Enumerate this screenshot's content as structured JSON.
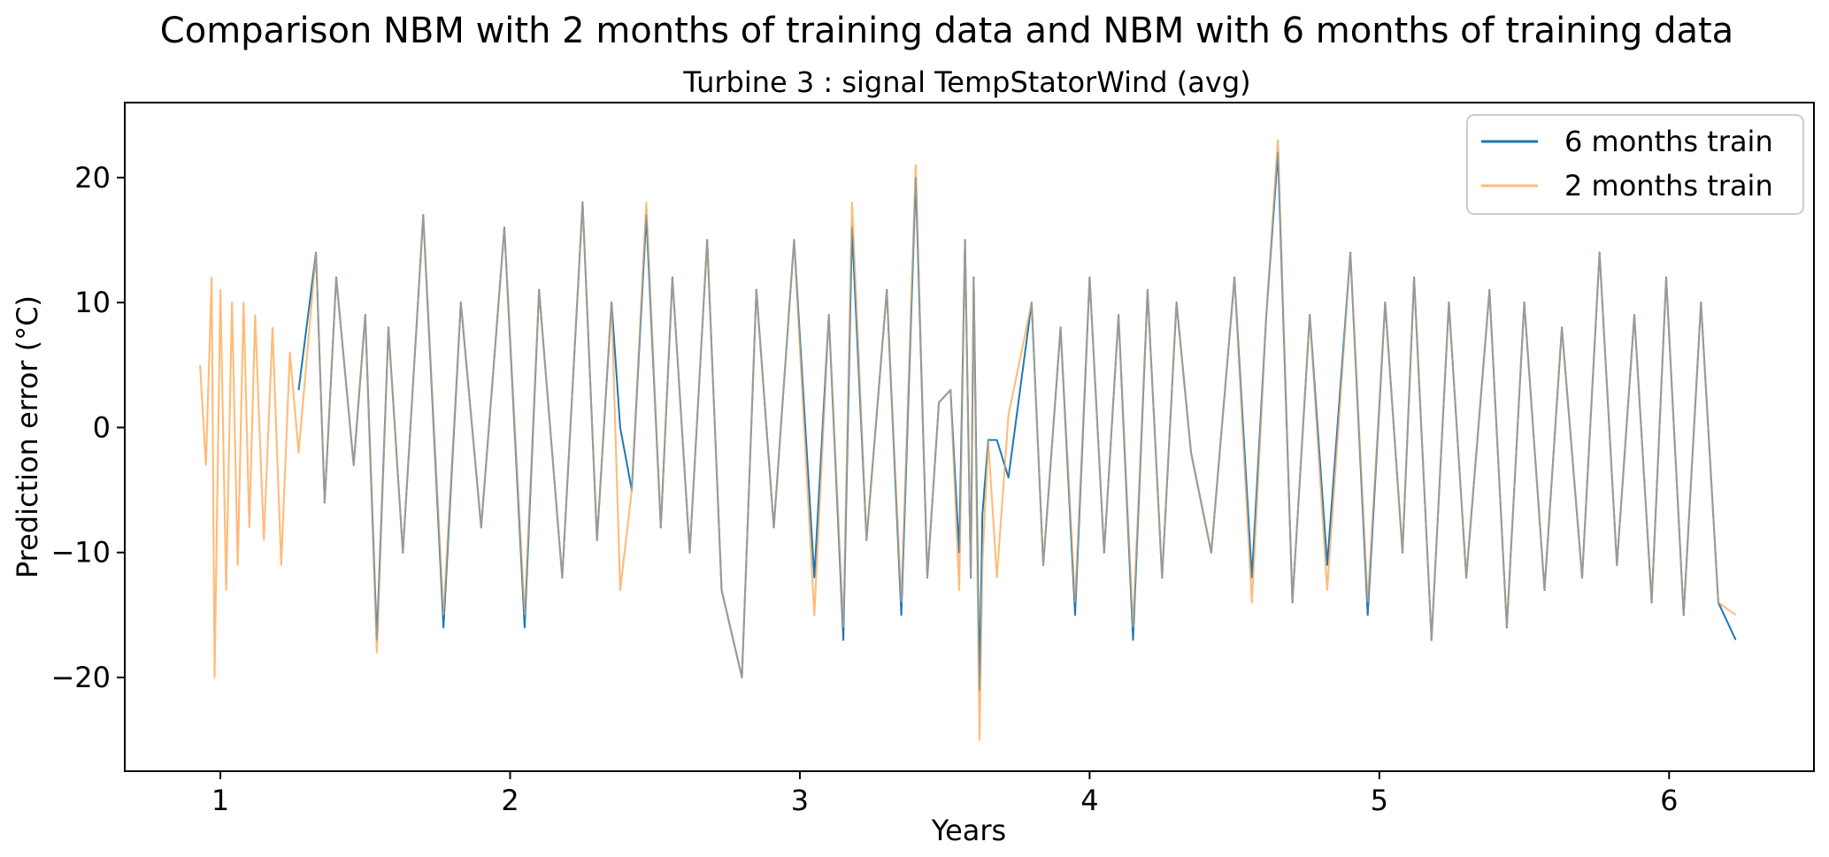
{
  "chart_data": {
    "type": "line",
    "title": "Comparison NBM with 2 months of training data and NBM with 6 months of training data",
    "subtitle": "Turbine 3 : signal TempStatorWind (avg)",
    "xlabel": "Years",
    "ylabel": "Prediction error (°C)",
    "xlim": [
      0.67,
      6.5
    ],
    "ylim": [
      -27.5,
      26
    ],
    "xticks": [
      1,
      2,
      3,
      4,
      5,
      6
    ],
    "xtick_labels": [
      "1",
      "2",
      "3",
      "4",
      "5",
      "6"
    ],
    "yticks": [
      -20,
      -10,
      0,
      10,
      20
    ],
    "ytick_labels": [
      "−20",
      "−10",
      "0",
      "10",
      "20"
    ],
    "grid": false,
    "legend_position": "top-right",
    "series": [
      {
        "name": "6 months train",
        "color": "#1f77b4",
        "x": [
          1.27,
          1.33,
          1.36,
          1.4,
          1.46,
          1.5,
          1.54,
          1.58,
          1.63,
          1.7,
          1.77,
          1.83,
          1.9,
          1.98,
          2.05,
          2.1,
          2.18,
          2.25,
          2.3,
          2.35,
          2.38,
          2.42,
          2.47,
          2.52,
          2.56,
          2.62,
          2.68,
          2.73,
          2.8,
          2.85,
          2.91,
          2.98,
          3.05,
          3.1,
          3.15,
          3.18,
          3.23,
          3.3,
          3.35,
          3.4,
          3.44,
          3.48,
          3.52,
          3.55,
          3.57,
          3.59,
          3.6,
          3.62,
          3.63,
          3.65,
          3.68,
          3.72,
          3.8,
          3.84,
          3.9,
          3.95,
          4.0,
          4.05,
          4.1,
          4.15,
          4.2,
          4.25,
          4.3,
          4.35,
          4.42,
          4.5,
          4.56,
          4.61,
          4.65,
          4.7,
          4.76,
          4.82,
          4.9,
          4.96,
          5.02,
          5.08,
          5.12,
          5.18,
          5.24,
          5.3,
          5.38,
          5.44,
          5.5,
          5.57,
          5.63,
          5.7,
          5.76,
          5.82,
          5.88,
          5.94,
          5.99,
          6.05,
          6.11,
          6.17,
          6.23
        ],
        "y": [
          3,
          14,
          -6,
          12,
          -3,
          9,
          -17,
          8,
          -10,
          17,
          -16,
          10,
          -8,
          16,
          -16,
          11,
          -12,
          18,
          -9,
          10,
          0,
          -5,
          17,
          -8,
          12,
          -10,
          15,
          -13,
          -20,
          11,
          -8,
          15,
          -12,
          9,
          -17,
          16,
          -9,
          11,
          -15,
          20,
          -12,
          2,
          3,
          -10,
          15,
          -12,
          12,
          -21,
          -7,
          -1,
          -1,
          -4,
          10,
          -11,
          8,
          -15,
          12,
          -10,
          9,
          -17,
          11,
          -12,
          10,
          -2,
          -10,
          12,
          -12,
          9,
          22,
          -14,
          9,
          -11,
          14,
          -15,
          10,
          -10,
          12,
          -17,
          10,
          -12,
          11,
          -16,
          10,
          -13,
          8,
          -12,
          14,
          -11,
          9,
          -14,
          12,
          -15,
          10,
          -14,
          -17
        ]
      },
      {
        "name": "2 months train",
        "color": "#ffbb78",
        "x": [
          0.93,
          0.95,
          0.97,
          0.98,
          1.0,
          1.02,
          1.04,
          1.06,
          1.08,
          1.1,
          1.12,
          1.15,
          1.18,
          1.21,
          1.24,
          1.27,
          1.33,
          1.36,
          1.4,
          1.46,
          1.5,
          1.54,
          1.58,
          1.63,
          1.7,
          1.77,
          1.83,
          1.9,
          1.98,
          2.05,
          2.1,
          2.18,
          2.25,
          2.3,
          2.35,
          2.38,
          2.42,
          2.47,
          2.52,
          2.56,
          2.62,
          2.68,
          2.73,
          2.8,
          2.85,
          2.91,
          2.98,
          3.05,
          3.1,
          3.15,
          3.18,
          3.23,
          3.3,
          3.35,
          3.4,
          3.44,
          3.48,
          3.52,
          3.55,
          3.57,
          3.59,
          3.6,
          3.62,
          3.63,
          3.65,
          3.68,
          3.72,
          3.8,
          3.84,
          3.9,
          3.95,
          4.0,
          4.05,
          4.1,
          4.15,
          4.2,
          4.25,
          4.3,
          4.35,
          4.42,
          4.5,
          4.56,
          4.61,
          4.65,
          4.7,
          4.76,
          4.82,
          4.9,
          4.96,
          5.02,
          5.08,
          5.12,
          5.18,
          5.24,
          5.3,
          5.38,
          5.44,
          5.5,
          5.57,
          5.63,
          5.7,
          5.76,
          5.82,
          5.88,
          5.94,
          5.99,
          6.05,
          6.11,
          6.17,
          6.23
        ],
        "y": [
          5,
          -3,
          12,
          -20,
          11,
          -13,
          10,
          -11,
          10,
          -8,
          9,
          -9,
          8,
          -11,
          6,
          -2,
          14,
          -6,
          12,
          -3,
          9,
          -18,
          8,
          -10,
          17,
          -15,
          10,
          -8,
          16,
          -15,
          11,
          -12,
          18,
          -9,
          10,
          -13,
          -5,
          18,
          -8,
          12,
          -10,
          15,
          -13,
          -20,
          11,
          -8,
          15,
          -15,
          9,
          -16,
          18,
          -9,
          11,
          -14,
          21,
          -12,
          2,
          3,
          -13,
          15,
          -12,
          12,
          -25,
          -11,
          -1,
          -12,
          1,
          10,
          -11,
          8,
          -14,
          12,
          -10,
          9,
          -16,
          11,
          -12,
          10,
          -2,
          -10,
          12,
          -14,
          9,
          23,
          -14,
          9,
          -13,
          14,
          -14,
          10,
          -10,
          12,
          -17,
          10,
          -12,
          11,
          -16,
          10,
          -13,
          8,
          -12,
          14,
          -11,
          9,
          -14,
          12,
          -15,
          10,
          -14,
          -15
        ]
      }
    ]
  }
}
